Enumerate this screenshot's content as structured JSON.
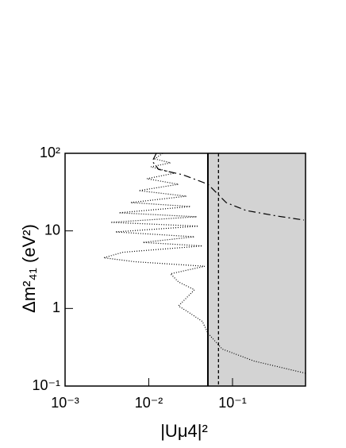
{
  "chart_data": {
    "type": "line",
    "xlabel": "|Uμ4|²",
    "ylabel": "Δm²₄₁ (eV²)",
    "xscale": "log",
    "yscale": "log",
    "xlim": [
      0.001,
      0.745
    ],
    "ylim": [
      0.1,
      100
    ],
    "xticks": [
      {
        "value": 0.001,
        "label": "10⁻³"
      },
      {
        "value": 0.01,
        "label": "10⁻²"
      },
      {
        "value": 0.1,
        "label": "10⁻¹"
      }
    ],
    "yticks": [
      {
        "value": 0.1,
        "label": "10⁻¹"
      },
      1,
      10,
      {
        "value": 100,
        "label": "10²"
      }
    ],
    "shade": {
      "x": [
        0.0508,
        0.745
      ],
      "color": "#d3d3d3"
    },
    "vlines": [
      {
        "x": 0.0508,
        "style": "solid",
        "color": "#000000"
      },
      {
        "x": 0.068,
        "style": "dashed",
        "color": "#000000"
      }
    ],
    "series": [
      {
        "color": "#000000",
        "style": "dotted",
        "x": [
          0.0147,
          0.0118,
          0.0182,
          0.0106,
          0.0203,
          0.0095,
          0.0226,
          0.0076,
          0.0282,
          0.0061,
          0.0315,
          0.0044,
          0.0374,
          0.0035,
          0.0391,
          0.004,
          0.0351,
          0.0085,
          0.0436,
          0.0049,
          0.0029,
          0.0068,
          0.0466,
          0.0182,
          0.0226,
          0.0351,
          0.0282,
          0.0226,
          0.0315,
          0.0436,
          0.0508,
          0.0753,
          0.18,
          0.745
        ],
        "values": [
          100,
          84.8,
          75.4,
          67.0,
          55.5,
          47.0,
          39.9,
          33.0,
          28.0,
          23.2,
          20.6,
          17.1,
          15.2,
          12.9,
          11.5,
          9.7,
          8.4,
          7.1,
          6.4,
          5.3,
          4.5,
          4.0,
          3.5,
          2.8,
          2.2,
          1.74,
          1.37,
          1.08,
          0.86,
          0.68,
          0.48,
          0.3,
          0.21,
          0.146
        ]
      },
      {
        "color": "#000000",
        "style": "dashdot",
        "x": [
          0.0123,
          0.011,
          0.0131,
          0.0253,
          0.0508,
          0.084,
          0.145,
          0.347,
          0.713
        ],
        "values": [
          100,
          79,
          62,
          53,
          40,
          23.2,
          18.3,
          15.5,
          13.8
        ]
      }
    ]
  }
}
